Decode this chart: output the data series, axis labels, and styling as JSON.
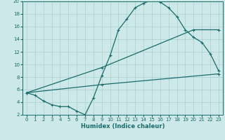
{
  "xlabel": "Humidex (Indice chaleur)",
  "xlim": [
    -0.5,
    23.5
  ],
  "ylim": [
    2,
    20
  ],
  "xticks": [
    0,
    1,
    2,
    3,
    4,
    5,
    6,
    7,
    8,
    9,
    10,
    11,
    12,
    13,
    14,
    15,
    16,
    17,
    18,
    19,
    20,
    21,
    22,
    23
  ],
  "yticks": [
    2,
    4,
    6,
    8,
    10,
    12,
    14,
    16,
    18,
    20
  ],
  "bg_color": "#cde8e8",
  "grid_color": "#aacfcf",
  "line_color": "#1a6b6b",
  "line1_x": [
    0,
    1,
    2,
    3,
    4,
    5,
    6,
    7,
    8,
    9,
    10,
    11,
    12,
    13,
    14,
    15,
    16,
    17,
    18,
    19,
    20,
    21,
    22,
    23
  ],
  "line1_y": [
    5.5,
    5.1,
    4.2,
    3.6,
    3.3,
    3.3,
    2.6,
    2.0,
    4.7,
    8.2,
    11.4,
    15.5,
    17.2,
    19.0,
    19.7,
    20.2,
    19.9,
    19.0,
    17.6,
    15.5,
    14.3,
    13.5,
    11.7,
    9.0
  ],
  "line2_x": [
    0,
    9,
    20,
    23
  ],
  "line2_y": [
    5.5,
    9.5,
    15.5,
    15.5
  ],
  "line3_x": [
    0,
    9,
    23
  ],
  "line3_y": [
    5.5,
    6.8,
    8.5
  ]
}
